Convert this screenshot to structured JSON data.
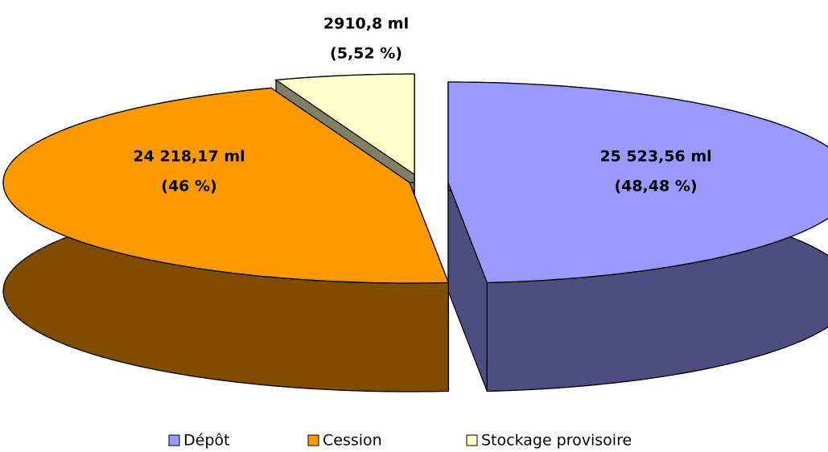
{
  "chart_data": {
    "type": "pie3d",
    "categories": [
      "Dépôt",
      "Cession",
      "Stockage provisoire"
    ],
    "values": [
      25523.56,
      24218.17,
      2910.8
    ],
    "value_labels": [
      "25 523,56 ml",
      "24 218,17 ml",
      "2910,8 ml"
    ],
    "percents": [
      48.48,
      46,
      5.52
    ],
    "percent_labels": [
      "(48,48 %)",
      "(46 %)",
      "(5,52 %)"
    ],
    "colors": [
      "#9999ff",
      "#ff9900",
      "#ffffcc"
    ],
    "side_colors": [
      "#4d4d80",
      "#804c00",
      "#808066"
    ],
    "legend": "bottom"
  }
}
